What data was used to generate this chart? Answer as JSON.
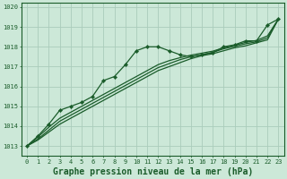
{
  "xlabel": "Graphe pression niveau de la mer (hPa)",
  "background_color": "#cce8d8",
  "grid_color": "#aaccbb",
  "line_color": "#1a5c2a",
  "x_ticks": [
    0,
    1,
    2,
    3,
    4,
    5,
    6,
    7,
    8,
    9,
    10,
    11,
    12,
    13,
    14,
    15,
    16,
    17,
    18,
    19,
    20,
    21,
    22,
    23
  ],
  "ylim_min": 1012.5,
  "ylim_max": 1020.2,
  "xlim_min": -0.5,
  "xlim_max": 23.5,
  "yticks": [
    1013,
    1014,
    1015,
    1016,
    1017,
    1018,
    1019,
    1020
  ],
  "series_main": [
    1013.0,
    1013.5,
    1014.1,
    1014.8,
    1015.0,
    1015.2,
    1015.5,
    1016.3,
    1016.5,
    1017.1,
    1017.8,
    1018.0,
    1018.0,
    1017.8,
    1017.6,
    1017.5,
    1017.6,
    1017.7,
    1018.0,
    1018.1,
    1018.3,
    1018.3,
    1019.1,
    1019.4
  ],
  "series_line2": [
    1013.0,
    1013.3,
    1013.7,
    1014.1,
    1014.4,
    1014.7,
    1015.0,
    1015.3,
    1015.6,
    1015.9,
    1016.2,
    1016.5,
    1016.8,
    1017.0,
    1017.2,
    1017.4,
    1017.55,
    1017.65,
    1017.8,
    1017.95,
    1018.05,
    1018.2,
    1018.35,
    1019.4
  ],
  "series_line3": [
    1013.0,
    1013.35,
    1013.8,
    1014.25,
    1014.55,
    1014.85,
    1015.15,
    1015.45,
    1015.75,
    1016.05,
    1016.35,
    1016.65,
    1016.95,
    1017.15,
    1017.35,
    1017.5,
    1017.6,
    1017.72,
    1017.9,
    1018.02,
    1018.15,
    1018.25,
    1018.45,
    1019.4
  ],
  "series_line4": [
    1013.0,
    1013.45,
    1013.95,
    1014.4,
    1014.7,
    1015.0,
    1015.3,
    1015.6,
    1015.9,
    1016.2,
    1016.5,
    1016.8,
    1017.1,
    1017.3,
    1017.45,
    1017.58,
    1017.68,
    1017.78,
    1017.95,
    1018.08,
    1018.22,
    1018.32,
    1018.55,
    1019.4
  ],
  "xlabel_fontsize": 7,
  "tick_fontsize": 5
}
